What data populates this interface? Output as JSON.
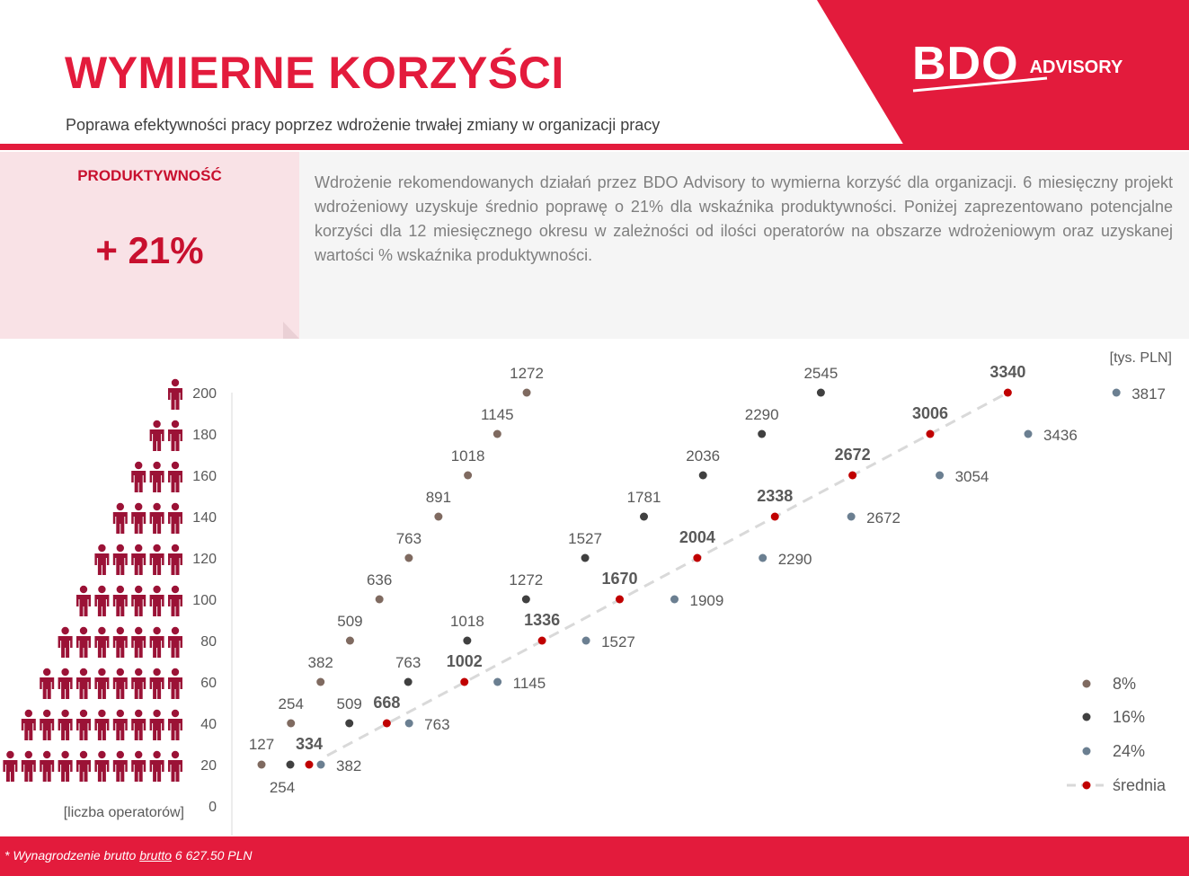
{
  "header": {
    "title": "WYMIERNE KORZYŚCI",
    "subtitle": "Poprawa efektywności pracy poprzez wdrożenie trwałej zmiany w organizacji pracy",
    "logo_main": "BDO",
    "logo_sub": "ADVISORY"
  },
  "kpi": {
    "label": "PRODUKTYWNOŚĆ",
    "value": "+ 21%"
  },
  "description": "Wdrożenie rekomendowanych działań przez BDO Advisory to wymierna korzyść dla organizacji. 6 miesięczny projekt wdrożeniowy uzyskuje średnio poprawę o 21% dla wskaźnika produktywności. Poniżej zaprezentowano potencjalne korzyści dla 12 miesięcznego okresu w zależności od ilości operatorów na obszarze wdrożeniowym oraz uzyskanej wartości % wskaźnika produktywności.",
  "footer": {
    "prefix": "* Wynagrodzenie brutto ",
    "underlined": "brutto",
    "suffix": " 6 627.50 PLN"
  },
  "colors": {
    "brand_red": "#e31b3c",
    "icon_red": "#9b1236",
    "s8": "#7f6a60",
    "s16": "#404040",
    "s24": "#6b7f91",
    "avg": "#c00000",
    "avg_line": "#d9d9d9"
  },
  "chart_data": {
    "type": "scatter",
    "unit": "[tys. PLN]",
    "ylabel": "[liczba operatorów]",
    "yticks": [
      "200",
      "180",
      "160",
      "140",
      "120",
      "100",
      "80",
      "60",
      "40",
      "20",
      "0"
    ],
    "ylim": [
      0,
      200
    ],
    "series": [
      {
        "name": "8%",
        "points": [
          [
            127,
            20
          ],
          [
            254,
            40
          ],
          [
            382,
            60
          ],
          [
            509,
            80
          ],
          [
            636,
            100
          ],
          [
            763,
            120
          ],
          [
            891,
            140
          ],
          [
            1018,
            160
          ],
          [
            1145,
            180
          ],
          [
            1272,
            200
          ]
        ]
      },
      {
        "name": "16%",
        "points": [
          [
            254,
            20
          ],
          [
            509,
            40
          ],
          [
            763,
            60
          ],
          [
            1018,
            80
          ],
          [
            1272,
            100
          ],
          [
            1527,
            120
          ],
          [
            1781,
            140
          ],
          [
            2036,
            160
          ],
          [
            2290,
            180
          ],
          [
            2545,
            200
          ]
        ]
      },
      {
        "name": "24%",
        "points": [
          [
            382,
            20
          ],
          [
            763,
            40
          ],
          [
            1145,
            60
          ],
          [
            1527,
            80
          ],
          [
            1909,
            100
          ],
          [
            2290,
            120
          ],
          [
            2672,
            140
          ],
          [
            3054,
            160
          ],
          [
            3436,
            180
          ],
          [
            3817,
            200
          ]
        ]
      },
      {
        "name": "średnia",
        "points": [
          [
            334,
            20
          ],
          [
            668,
            40
          ],
          [
            1002,
            60
          ],
          [
            1336,
            80
          ],
          [
            1670,
            100
          ],
          [
            2004,
            120
          ],
          [
            2338,
            140
          ],
          [
            2672,
            160
          ],
          [
            3006,
            180
          ],
          [
            3340,
            200
          ]
        ]
      }
    ],
    "people_icons_per_row": [
      1,
      2,
      3,
      4,
      5,
      6,
      7,
      8,
      9,
      10
    ],
    "legend_position": "bottom-right"
  }
}
